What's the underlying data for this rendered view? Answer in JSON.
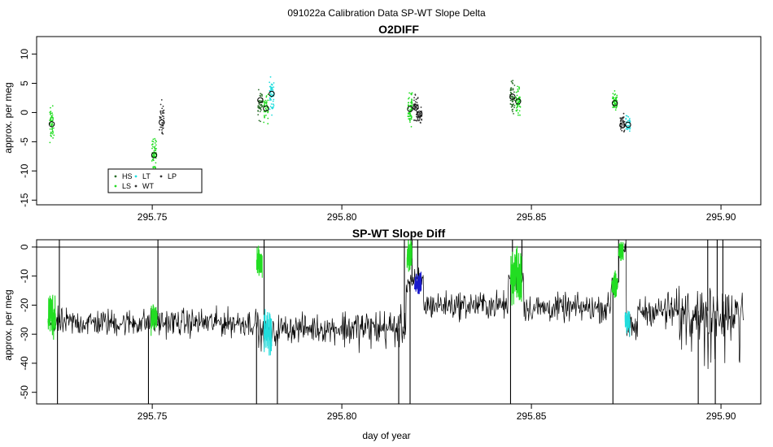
{
  "page_title": "091022a   Calibration Data SP-WT Slope Delta",
  "colors": {
    "HS": "#2b6e2b",
    "LS": "#22dd22",
    "LT": "#22dddd",
    "WT": "#333333",
    "LP": "#333333",
    "blue": "#1a1acc",
    "line": "#000000"
  },
  "chart_data": [
    {
      "type": "scatter",
      "title": "O2DIFF",
      "xlabel": "",
      "ylabel": "approx. per meg",
      "xlim": [
        295.7195,
        295.9105
      ],
      "ylim": [
        -15.8,
        13.0
      ],
      "xticks": [
        295.75,
        295.8,
        295.85,
        295.9
      ],
      "xtick_labels": [
        "295.75",
        "295.80",
        "295.85",
        "295.90"
      ],
      "yticks": [
        -15,
        -10,
        -5,
        0,
        5,
        10
      ],
      "ytick_labels": [
        "-15",
        "-10",
        "-5",
        "0",
        "5",
        "10"
      ],
      "legend": {
        "position": "bottom-left",
        "entries": [
          "HS",
          "LT",
          "LP",
          "LS",
          "WT"
        ]
      },
      "clusters": [
        {
          "series": "LS",
          "x": 295.7235,
          "center": -2.0,
          "spread": 4.2,
          "n": 55
        },
        {
          "series": "LS",
          "x": 295.7505,
          "center": -7.0,
          "spread": 3.6,
          "n": 60
        },
        {
          "series": "WT",
          "x": 295.7525,
          "center": -1.2,
          "spread": 4.2,
          "n": 40
        },
        {
          "series": "HS",
          "x": 295.7785,
          "center": 1.5,
          "spread": 3.6,
          "n": 45
        },
        {
          "series": "LS",
          "x": 295.78,
          "center": 0.8,
          "spread": 3.6,
          "n": 40
        },
        {
          "series": "LT",
          "x": 295.7815,
          "center": 3.0,
          "spread": 4.0,
          "n": 55
        },
        {
          "series": "LS",
          "x": 295.818,
          "center": 0.8,
          "spread": 4.0,
          "n": 65
        },
        {
          "series": "WT",
          "x": 295.8195,
          "center": 1.0,
          "spread": 3.2,
          "n": 40
        },
        {
          "series": "LP",
          "x": 295.8205,
          "center": -0.5,
          "spread": 1.8,
          "n": 35
        },
        {
          "series": "HS",
          "x": 295.845,
          "center": 2.5,
          "spread": 3.8,
          "n": 50
        },
        {
          "series": "LS",
          "x": 295.8465,
          "center": 2.0,
          "spread": 3.4,
          "n": 55
        },
        {
          "series": "LS",
          "x": 295.872,
          "center": 1.8,
          "spread": 2.2,
          "n": 50
        },
        {
          "series": "WT",
          "x": 295.874,
          "center": -2.0,
          "spread": 2.4,
          "n": 35
        },
        {
          "series": "LT",
          "x": 295.8755,
          "center": -2.2,
          "spread": 2.2,
          "n": 35
        }
      ],
      "means": [
        {
          "x": 295.7235,
          "y": -2.0
        },
        {
          "x": 295.7505,
          "y": -7.3
        },
        {
          "x": 295.7525,
          "y": -1.7
        },
        {
          "x": 295.7785,
          "y": 2.1
        },
        {
          "x": 295.78,
          "y": 0.7
        },
        {
          "x": 295.7815,
          "y": 3.2
        },
        {
          "x": 295.818,
          "y": 0.6
        },
        {
          "x": 295.8195,
          "y": 0.9
        },
        {
          "x": 295.8205,
          "y": -0.2
        },
        {
          "x": 295.845,
          "y": 2.7
        },
        {
          "x": 295.8465,
          "y": 1.9
        },
        {
          "x": 295.872,
          "y": 1.6
        },
        {
          "x": 295.874,
          "y": -2.2
        },
        {
          "x": 295.8755,
          "y": -2.1
        }
      ]
    },
    {
      "type": "line",
      "title": "SP-WT Slope Diff",
      "xlabel": "day of year",
      "ylabel": "approx. per meg",
      "xlim": [
        295.7195,
        295.9105
      ],
      "ylim": [
        -54.0,
        2.5
      ],
      "xticks": [
        295.75,
        295.8,
        295.85,
        295.9
      ],
      "xtick_labels": [
        "295.75",
        "295.80",
        "295.85",
        "295.90"
      ],
      "yticks": [
        -50,
        -40,
        -30,
        -20,
        -10,
        0
      ],
      "ytick_labels": [
        "-50",
        "-40",
        "-30",
        "-20",
        "-10",
        "0"
      ],
      "hline": 0,
      "x_range": [
        295.7225,
        295.906
      ],
      "baseline_segments": [
        {
          "x0": 295.7225,
          "x1": 295.778,
          "level": -26
        },
        {
          "x0": 295.778,
          "x1": 295.783,
          "level": -30
        },
        {
          "x0": 295.783,
          "x1": 295.817,
          "level": -28
        },
        {
          "x0": 295.817,
          "x1": 295.8215,
          "level": -12
        },
        {
          "x0": 295.8215,
          "x1": 295.844,
          "level": -20
        },
        {
          "x0": 295.844,
          "x1": 295.848,
          "level": -10
        },
        {
          "x0": 295.848,
          "x1": 295.871,
          "level": -21
        },
        {
          "x0": 295.871,
          "x1": 295.873,
          "level": -12
        },
        {
          "x0": 295.873,
          "x1": 295.875,
          "level": -1
        },
        {
          "x0": 295.875,
          "x1": 295.878,
          "level": -28
        },
        {
          "x0": 295.878,
          "x1": 295.906,
          "level": -22
        }
      ],
      "spikes_up": [
        295.7255,
        295.7515,
        295.7795,
        295.8165,
        295.8185,
        295.82,
        295.845,
        295.8475,
        295.873,
        295.8965,
        295.899,
        295.9005
      ],
      "spikes_down": [
        295.725,
        295.749,
        295.7775,
        295.783,
        295.815,
        295.818,
        295.8445,
        295.8715,
        295.894,
        295.8985
      ],
      "overlays": [
        {
          "series": "LS",
          "x0": 295.7225,
          "x1": 295.7245,
          "center": -23,
          "spread": 12
        },
        {
          "series": "LS",
          "x0": 295.7497,
          "x1": 295.7513,
          "center": -24,
          "spread": 8
        },
        {
          "series": "LS",
          "x0": 295.7775,
          "x1": 295.779,
          "center": -6,
          "spread": 8
        },
        {
          "series": "LT",
          "x0": 295.7795,
          "x1": 295.7815,
          "center": -30,
          "spread": 10
        },
        {
          "series": "LS",
          "x0": 295.8172,
          "x1": 295.8185,
          "center": -3,
          "spread": 8
        },
        {
          "series": "LP",
          "x0": 295.8192,
          "x1": 295.821,
          "center": -13,
          "spread": 6
        },
        {
          "series": "LS",
          "x0": 295.8445,
          "x1": 295.8475,
          "center": -9,
          "spread": 14
        },
        {
          "series": "LS",
          "x0": 295.8712,
          "x1": 295.8727,
          "center": -13,
          "spread": 6
        },
        {
          "series": "LS",
          "x0": 295.873,
          "x1": 295.8742,
          "center": -1,
          "spread": 5
        },
        {
          "series": "LT",
          "x0": 295.8747,
          "x1": 295.876,
          "center": -26,
          "spread": 6
        }
      ]
    }
  ]
}
